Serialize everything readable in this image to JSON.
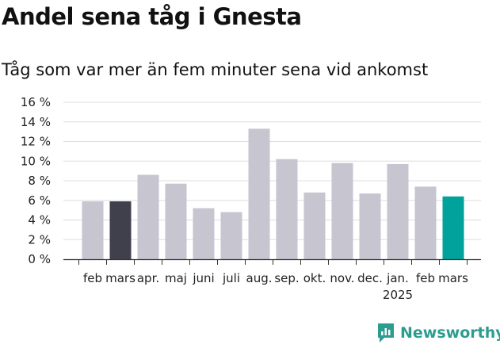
{
  "title": "Andel sena tåg i Gnesta",
  "subtitle": "Tåg som var mer än fem minuter sena vid ankomst",
  "brand": {
    "name": "Newsworthy",
    "color": "#2a9d8f"
  },
  "colors": {
    "bar_default": "#c6c5d0",
    "bar_highlight_past": "#403f4c",
    "bar_highlight_current": "#00a29b",
    "grid": "#dddddd",
    "axis": "#333333"
  },
  "chart_data": {
    "type": "bar",
    "categories": [
      "feb",
      "mars",
      "apr.",
      "maj",
      "juni",
      "juli",
      "aug.",
      "sep.",
      "okt.",
      "nov.",
      "dec.",
      "jan.",
      "feb",
      "mars"
    ],
    "year_label": "2025",
    "year_label_under_index": 11,
    "values": [
      5.9,
      5.9,
      8.6,
      7.7,
      5.2,
      4.8,
      13.3,
      10.2,
      6.8,
      9.8,
      6.7,
      9.7,
      7.4,
      6.4
    ],
    "highlight": {
      "1": "bar_highlight_past",
      "13": "bar_highlight_current"
    },
    "ylim": [
      0,
      16
    ],
    "yticks": [
      0,
      2,
      4,
      6,
      8,
      10,
      12,
      14,
      16
    ],
    "ytick_labels": [
      "0 %",
      "2 %",
      "4 %",
      "6 %",
      "8 %",
      "10 %",
      "12 %",
      "14 %",
      "16 %"
    ],
    "grid": true
  }
}
